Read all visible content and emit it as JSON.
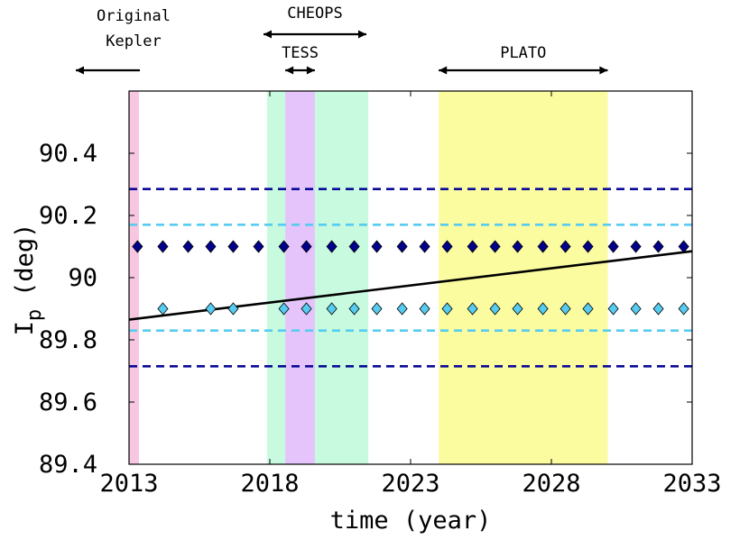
{
  "chart_data": {
    "type": "scatter",
    "title": "",
    "xlabel": "time (year)",
    "ylabel": "I",
    "ylabel_subscript": "p",
    "ylabel_unit": "(deg)",
    "xlim": [
      2013,
      2033
    ],
    "ylim": [
      89.4,
      90.6
    ],
    "x_ticks": [
      2013,
      2018,
      2023,
      2028,
      2033
    ],
    "x_tick_labels": [
      "2013",
      "2018",
      "2023",
      "2028",
      "2033"
    ],
    "y_ticks": [
      89.4,
      89.6,
      89.8,
      90,
      90.2,
      90.4
    ],
    "y_tick_labels": [
      "89.4",
      "89.6",
      "89.8",
      "90",
      "90.2",
      "90.4"
    ],
    "grid": false,
    "missions": [
      {
        "name": "Original Kepler",
        "label_lines": [
          "Original",
          "Kepler"
        ],
        "start": 2009.0,
        "end": 2013.35,
        "color": "#f7c6e0",
        "arrow": "left"
      },
      {
        "name": "CHEOPS",
        "label_lines": [
          "CHEOPS"
        ],
        "start": 2017.9,
        "end": 2021.5,
        "color": "#c8fae0",
        "arrow": "both"
      },
      {
        "name": "TESS",
        "label_lines": [
          "TESS"
        ],
        "start": 2018.55,
        "end": 2019.6,
        "color": "#e4c4fb",
        "arrow": "both"
      },
      {
        "name": "PLATO",
        "label_lines": [
          "PLATO"
        ],
        "start": 2024.0,
        "end": 2030.0,
        "color": "#fbfba0",
        "arrow": "both"
      }
    ],
    "reference_lines": [
      {
        "name": "upper dark bound",
        "y": 90.285,
        "color": "#0a0a96"
      },
      {
        "name": "upper light bound",
        "y": 90.17,
        "color": "#55ccf0"
      },
      {
        "name": "lower light bound",
        "y": 89.83,
        "color": "#55ccf0"
      },
      {
        "name": "lower dark bound",
        "y": 89.715,
        "color": "#0a0a96"
      }
    ],
    "trend_line": {
      "name": "linear trend",
      "x": [
        2013,
        2033
      ],
      "y": [
        89.865,
        90.085
      ],
      "color": "#000000"
    },
    "series": [
      {
        "name": "dark diamonds",
        "marker": "diamond",
        "color": "#00008b",
        "y": 90.1,
        "x": [
          2013.3,
          2014.2,
          2015.1,
          2015.9,
          2016.7,
          2017.6,
          2018.5,
          2019.3,
          2020.2,
          2021.0,
          2021.8,
          2022.7,
          2023.5,
          2024.3,
          2025.2,
          2026.0,
          2026.8,
          2027.7,
          2028.5,
          2029.3,
          2030.2,
          2031.0,
          2031.8,
          2032.7
        ]
      },
      {
        "name": "light diamonds",
        "marker": "diamond",
        "color": "#55ccf0",
        "y": 89.9,
        "x": [
          2014.2,
          2015.9,
          2016.7,
          2018.5,
          2019.3,
          2020.2,
          2021.0,
          2021.8,
          2022.7,
          2023.5,
          2024.3,
          2025.2,
          2026.0,
          2026.8,
          2027.7,
          2028.5,
          2029.3,
          2030.2,
          2031.0,
          2031.8,
          2032.7
        ]
      }
    ]
  }
}
